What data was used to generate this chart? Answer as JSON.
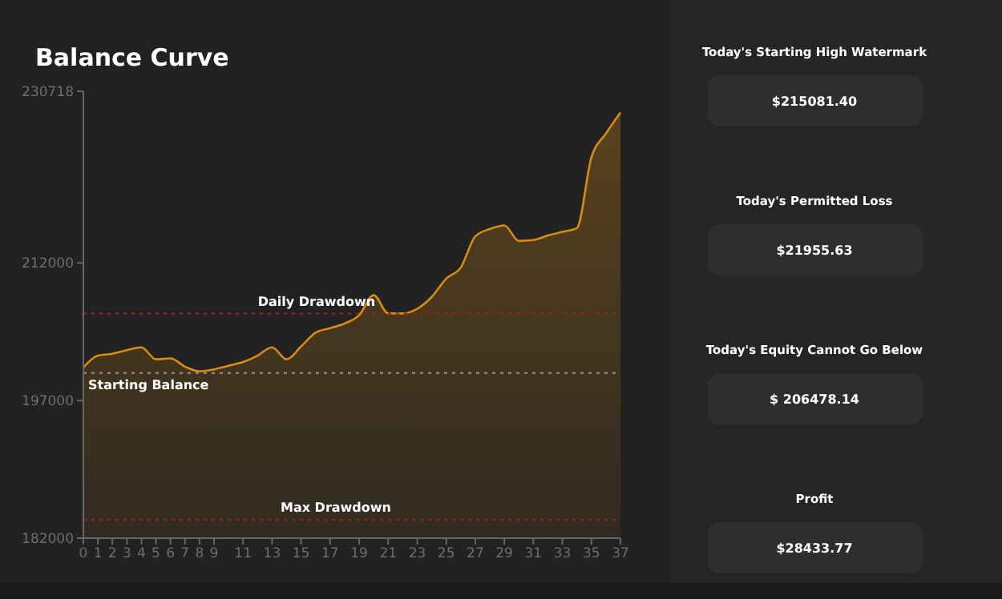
{
  "chart_data": [
    {
      "type": "area",
      "title": "Balance Curve",
      "x": [
        0,
        1,
        2,
        3,
        4,
        5,
        6,
        7,
        8,
        9,
        10,
        11,
        12,
        13,
        14,
        15,
        16,
        17,
        18,
        19,
        20,
        21,
        22,
        23,
        24,
        25,
        26,
        27,
        28,
        29,
        30,
        31,
        32,
        33,
        34,
        35,
        36,
        37
      ],
      "series": [
        {
          "color": "#d98c12",
          "values": [
            200600,
            201900,
            202100,
            202500,
            202800,
            201500,
            201600,
            200700,
            200200,
            200400,
            200800,
            201200,
            201900,
            202800,
            201500,
            202900,
            204400,
            204900,
            205400,
            206300,
            208500,
            206500,
            206500,
            207000,
            208300,
            210300,
            211500,
            214900,
            215700,
            216100,
            214400,
            214500,
            215000,
            215400,
            215800,
            223500,
            226100,
            228400
          ]
        }
      ],
      "xlim": [
        0,
        37
      ],
      "xticks": [
        0,
        1,
        2,
        3,
        4,
        5,
        6,
        7,
        8,
        9,
        11,
        13,
        15,
        17,
        19,
        21,
        23,
        25,
        27,
        29,
        31,
        33,
        35,
        37
      ],
      "ylim": [
        182000,
        230718
      ],
      "yticks": [
        182000,
        197000,
        212000,
        230718
      ],
      "ref_lines": [
        {
          "axis": "y",
          "value": 206478,
          "label": "Daily Drawdown",
          "color": "#9b2020",
          "line_style": "dotted"
        },
        {
          "axis": "y",
          "value": 200000,
          "label": "Starting Balance",
          "color": "#8a8a8a",
          "line_style": "dotted"
        },
        {
          "axis": "y",
          "value": 184000,
          "label": "Max Drawdown",
          "color": "#9b2020",
          "line_style": "dotted"
        }
      ]
    },
    {
      "type": "other",
      "annotations": [
        "Today's Starting High Watermark",
        "$215081.40",
        "Today's Permitted Loss",
        "$21955.63",
        "Today's Equity Cannot Go Below",
        "$ 206478.14",
        "Profit",
        "$28433.77"
      ]
    }
  ]
}
